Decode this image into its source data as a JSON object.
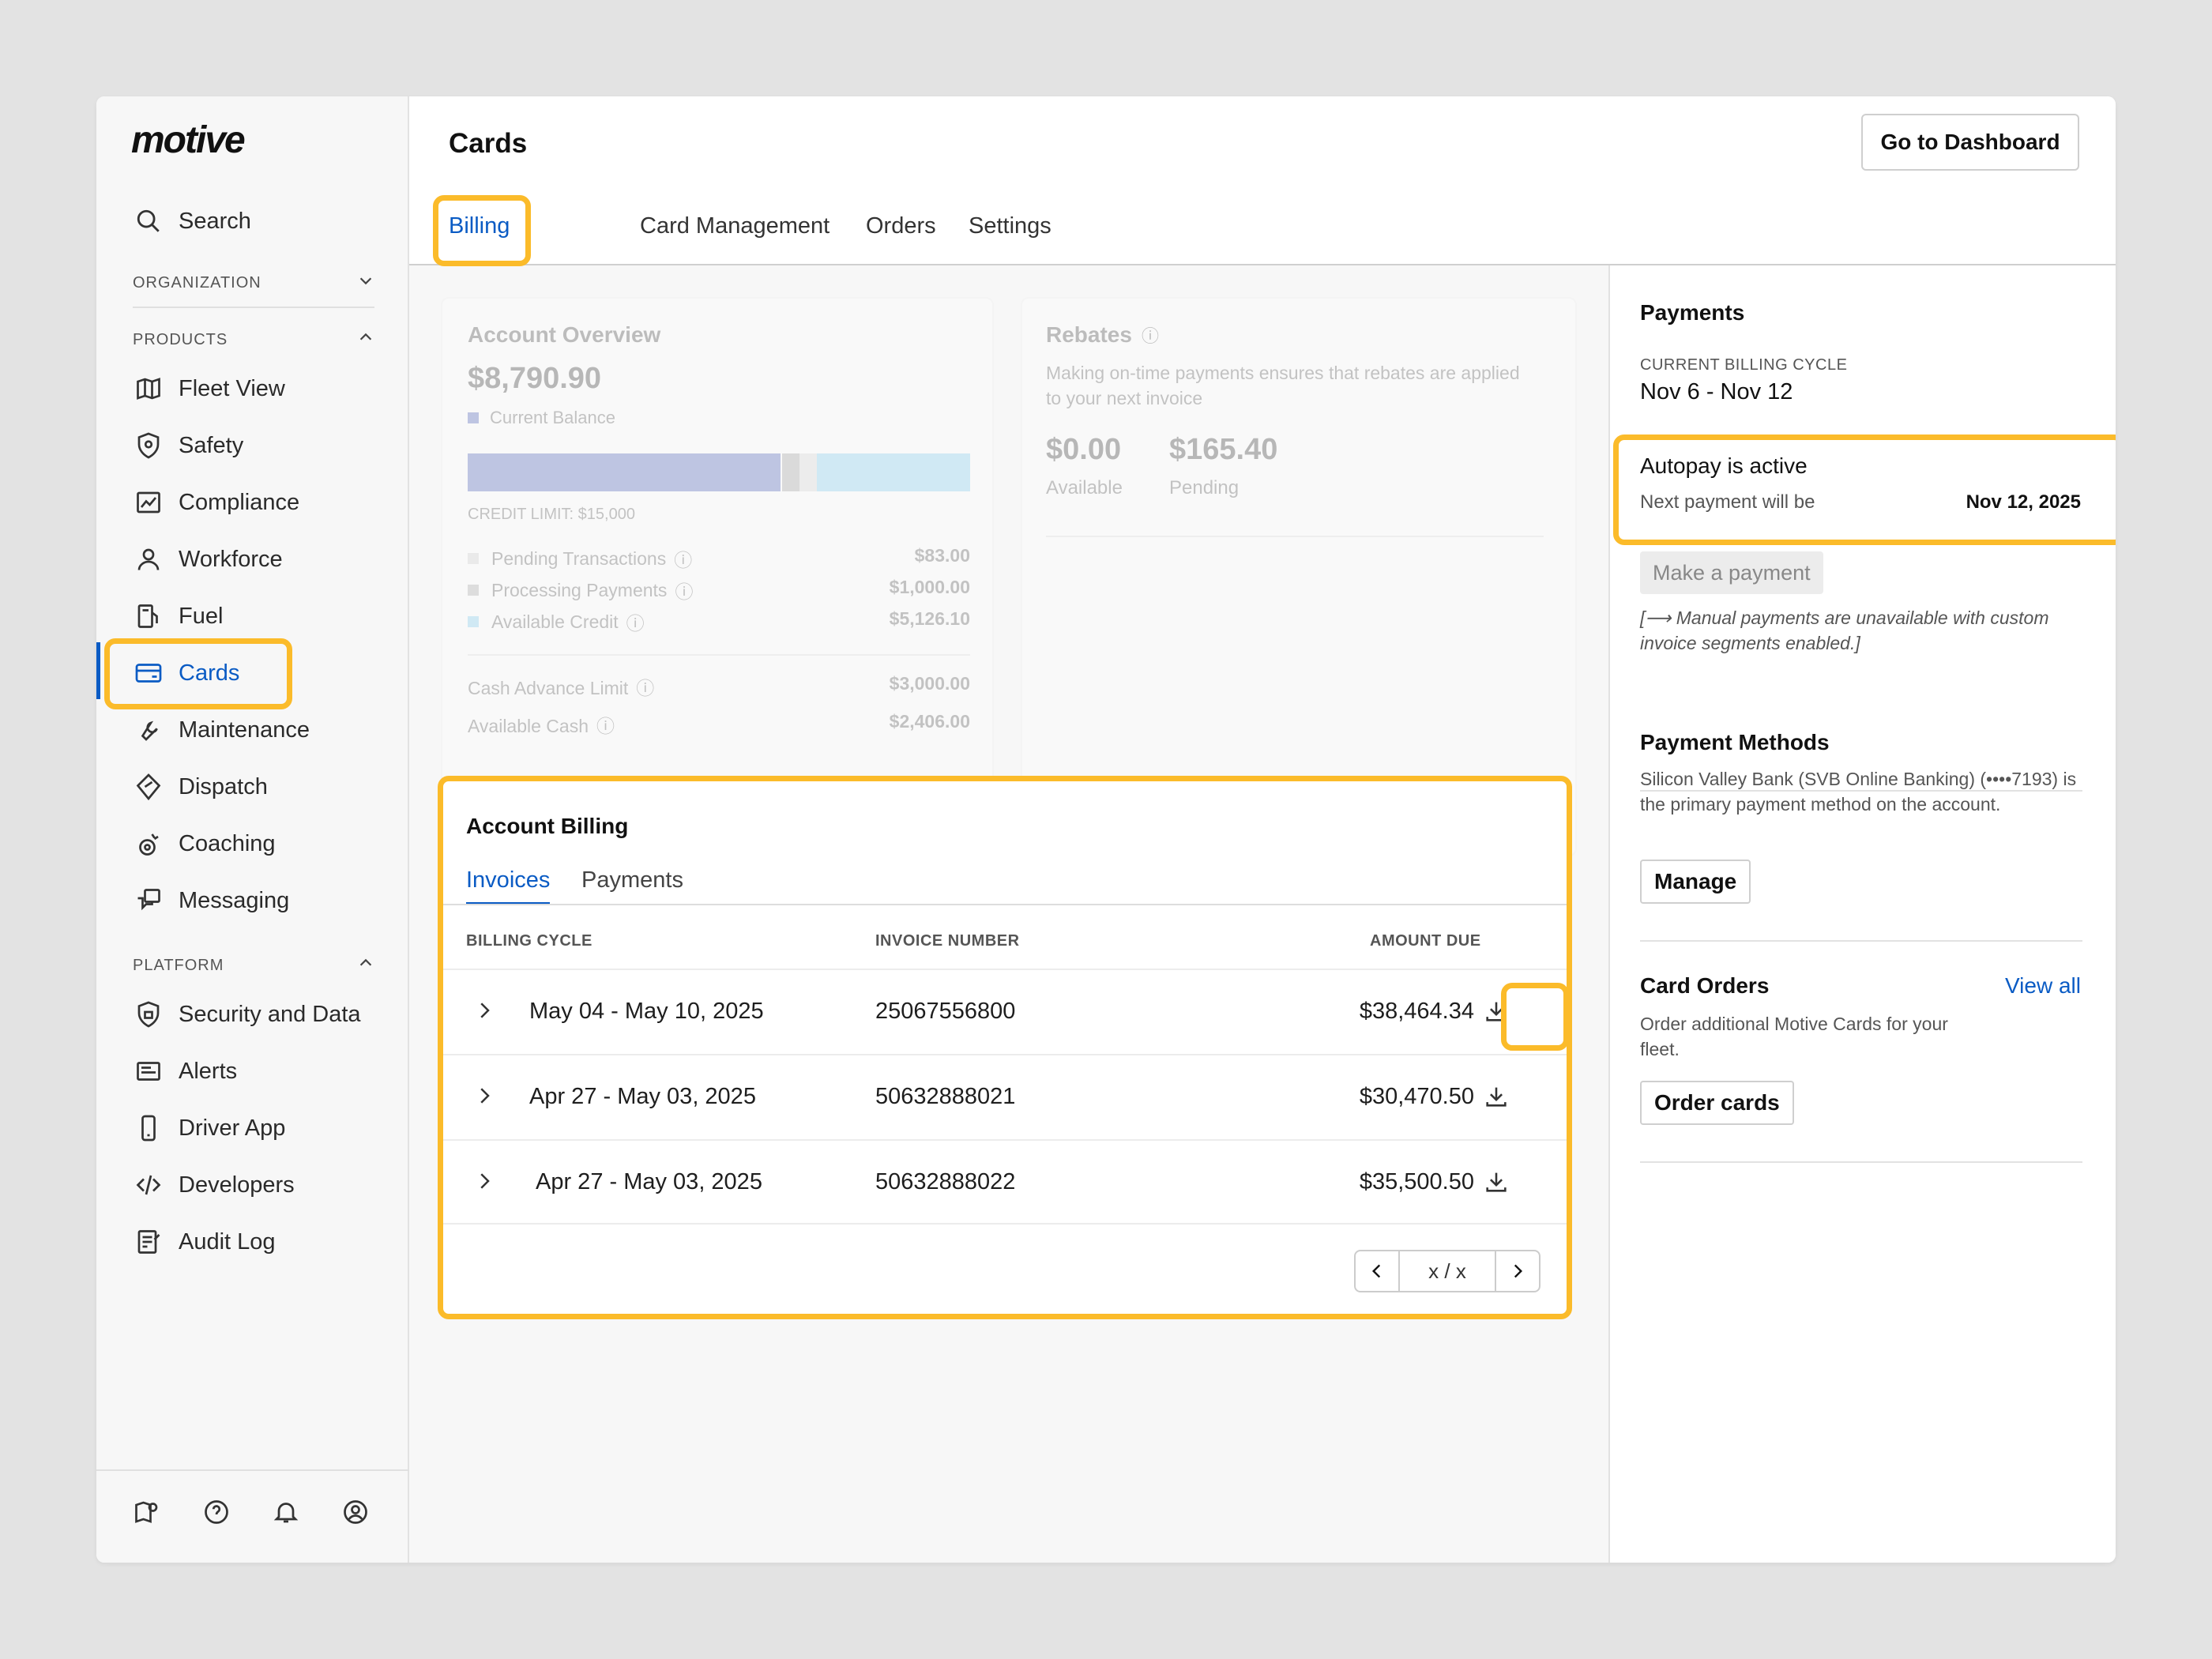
{
  "app": {
    "logo": "motive"
  },
  "sidebar": {
    "search": "Search",
    "organization": "ORGANIZATION",
    "products": "PRODUCTS",
    "platform": "PLATFORM",
    "products_items": [
      {
        "label": "Fleet View",
        "icon": "map-icon"
      },
      {
        "label": "Safety",
        "icon": "shield-icon"
      },
      {
        "label": "Compliance",
        "icon": "chart-icon"
      },
      {
        "label": "Workforce",
        "icon": "person-icon"
      },
      {
        "label": "Fuel",
        "icon": "fuel-pump-icon"
      },
      {
        "label": "Cards",
        "icon": "credit-card-icon"
      },
      {
        "label": "Maintenance",
        "icon": "wrench-icon"
      },
      {
        "label": "Dispatch",
        "icon": "dispatch-icon"
      },
      {
        "label": "Coaching",
        "icon": "coaching-icon"
      },
      {
        "label": "Messaging",
        "icon": "messaging-icon"
      }
    ],
    "platform_items": [
      {
        "label": "Security and Data",
        "icon": "lock-shield-icon"
      },
      {
        "label": "Alerts",
        "icon": "alert-icon"
      },
      {
        "label": "Driver App",
        "icon": "phone-icon"
      },
      {
        "label": "Developers",
        "icon": "code-icon"
      },
      {
        "label": "Audit Log",
        "icon": "audit-log-icon"
      }
    ]
  },
  "header": {
    "title": "Cards",
    "dashboard_button": "Go to Dashboard",
    "tabs": [
      "Billing",
      "Card Management",
      "Orders",
      "Settings"
    ]
  },
  "overview": {
    "title": "Account Overview",
    "balance": "$8,790.90",
    "balance_label": "Current Balance",
    "credit_limit": "CREDIT LIMIT: $15,000",
    "rows": [
      {
        "label": "Pending Transactions",
        "value": "$83.00",
        "color": "#d0d0d0"
      },
      {
        "label": "Processing Payments",
        "value": "$1,000.00",
        "color": "#a8a8a8"
      },
      {
        "label": "Available Credit",
        "value": "$5,126.10",
        "color": "#7fcdf0"
      }
    ],
    "cash_rows": [
      {
        "label": "Cash Advance Limit",
        "value": "$3,000.00"
      },
      {
        "label": "Available Cash",
        "value": "$2,406.00"
      }
    ]
  },
  "rebates": {
    "title": "Rebates",
    "description": "Making on-time payments ensures that rebates are applied to your next invoice",
    "available": "$0.00",
    "available_label": "Available",
    "pending": "$165.40",
    "pending_label": "Pending"
  },
  "billing": {
    "title": "Account Billing",
    "tabs": [
      "Invoices",
      "Payments"
    ],
    "columns": [
      "BILLING CYCLE",
      "INVOICE NUMBER",
      "AMOUNT DUE"
    ],
    "rows": [
      {
        "cycle": "May 04 - May 10, 2025",
        "invoice": "25067556800",
        "amount": "$38,464.34"
      },
      {
        "cycle": "Apr 27 - May 03, 2025",
        "invoice": "50632888021",
        "amount": "$30,470.50"
      },
      {
        "cycle": "Apr 27 - May 03, 2025",
        "invoice": "50632888022",
        "amount": "$35,500.50"
      }
    ],
    "pager": "x / x"
  },
  "payments": {
    "title": "Payments",
    "cycle_label": "CURRENT BILLING CYCLE",
    "cycle": "Nov 6 - Nov 12",
    "autopay": "Autopay is active",
    "next_label": "Next payment will be",
    "next_date": "Nov 12, 2025",
    "make_payment": "Make a payment",
    "note": "[⟶ Manual payments are unavailable with custom invoice segments enabled.]",
    "methods_title": "Payment Methods",
    "methods_text": "Silicon Valley Bank (SVB Online Banking) (••••7193) is the primary payment method on the account.",
    "manage": "Manage",
    "orders_title": "Card Orders",
    "view_all": "View all",
    "orders_text": "Order additional Motive Cards for your fleet.",
    "order_button": "Order cards"
  },
  "colors": {
    "accent": "#0a5bc4",
    "highlight": "#fbbb2a",
    "bar_used": "#4a5eb8",
    "bar_available": "#7fcdf0"
  }
}
